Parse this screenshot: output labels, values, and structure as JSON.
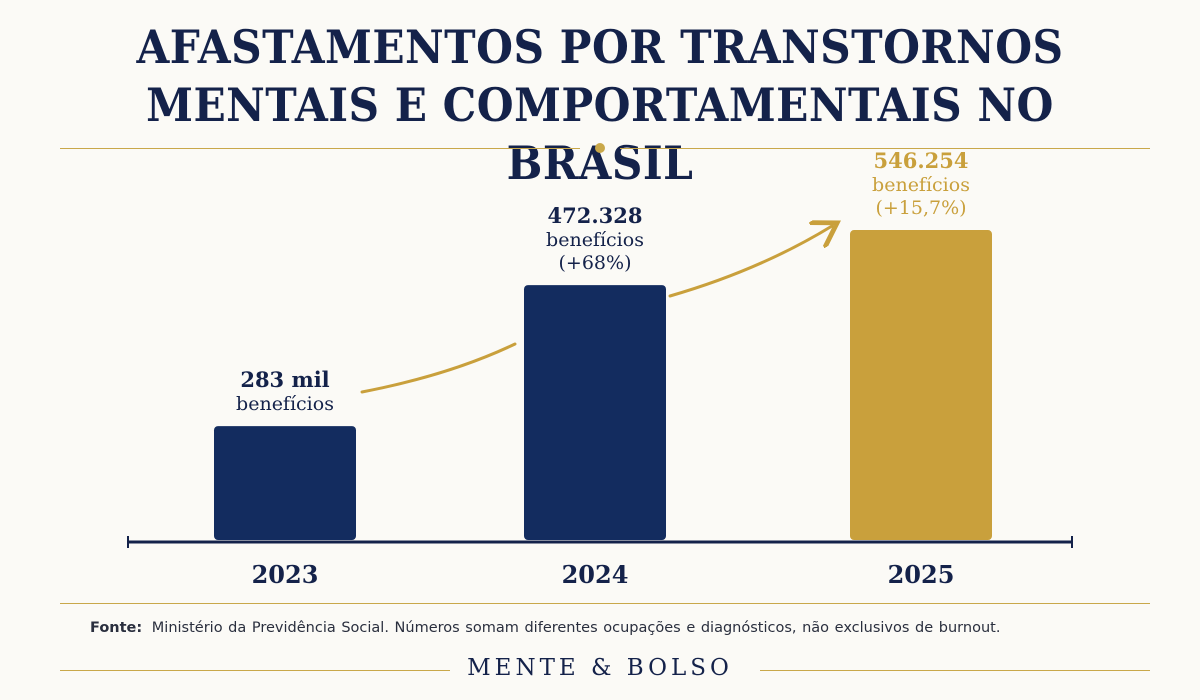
{
  "title_lines": [
    "AFASTAMENTOS POR TRANSTORNOS",
    "MENTAIS E COMPORTAMENTAIS NO BRASIL"
  ],
  "chart_data": {
    "type": "bar",
    "categories": [
      "2023",
      "2024",
      "2025"
    ],
    "values": [
      283000,
      472328,
      546254
    ],
    "labels": [
      [
        "283 mil",
        "benefícios"
      ],
      [
        "472.328",
        "benefícios",
        "(+68%)"
      ],
      [
        "546.254",
        "benefícios",
        "(+15,7%)"
      ]
    ],
    "series": [
      {
        "values": [
          283000,
          472328,
          546254
        ]
      }
    ],
    "ylim": [
      0,
      600000
    ],
    "grid": false,
    "colors": {
      "bar": "#132c5f",
      "highlight": "#c9a03c",
      "accent": "#c9a84a"
    }
  },
  "source_label": "Fonte:",
  "source_text": "Ministério da Previdência Social. Números somam diferentes ocupações e diagnósticos, não exclusivos de burnout.",
  "brand": "MENTE & BOLSO"
}
